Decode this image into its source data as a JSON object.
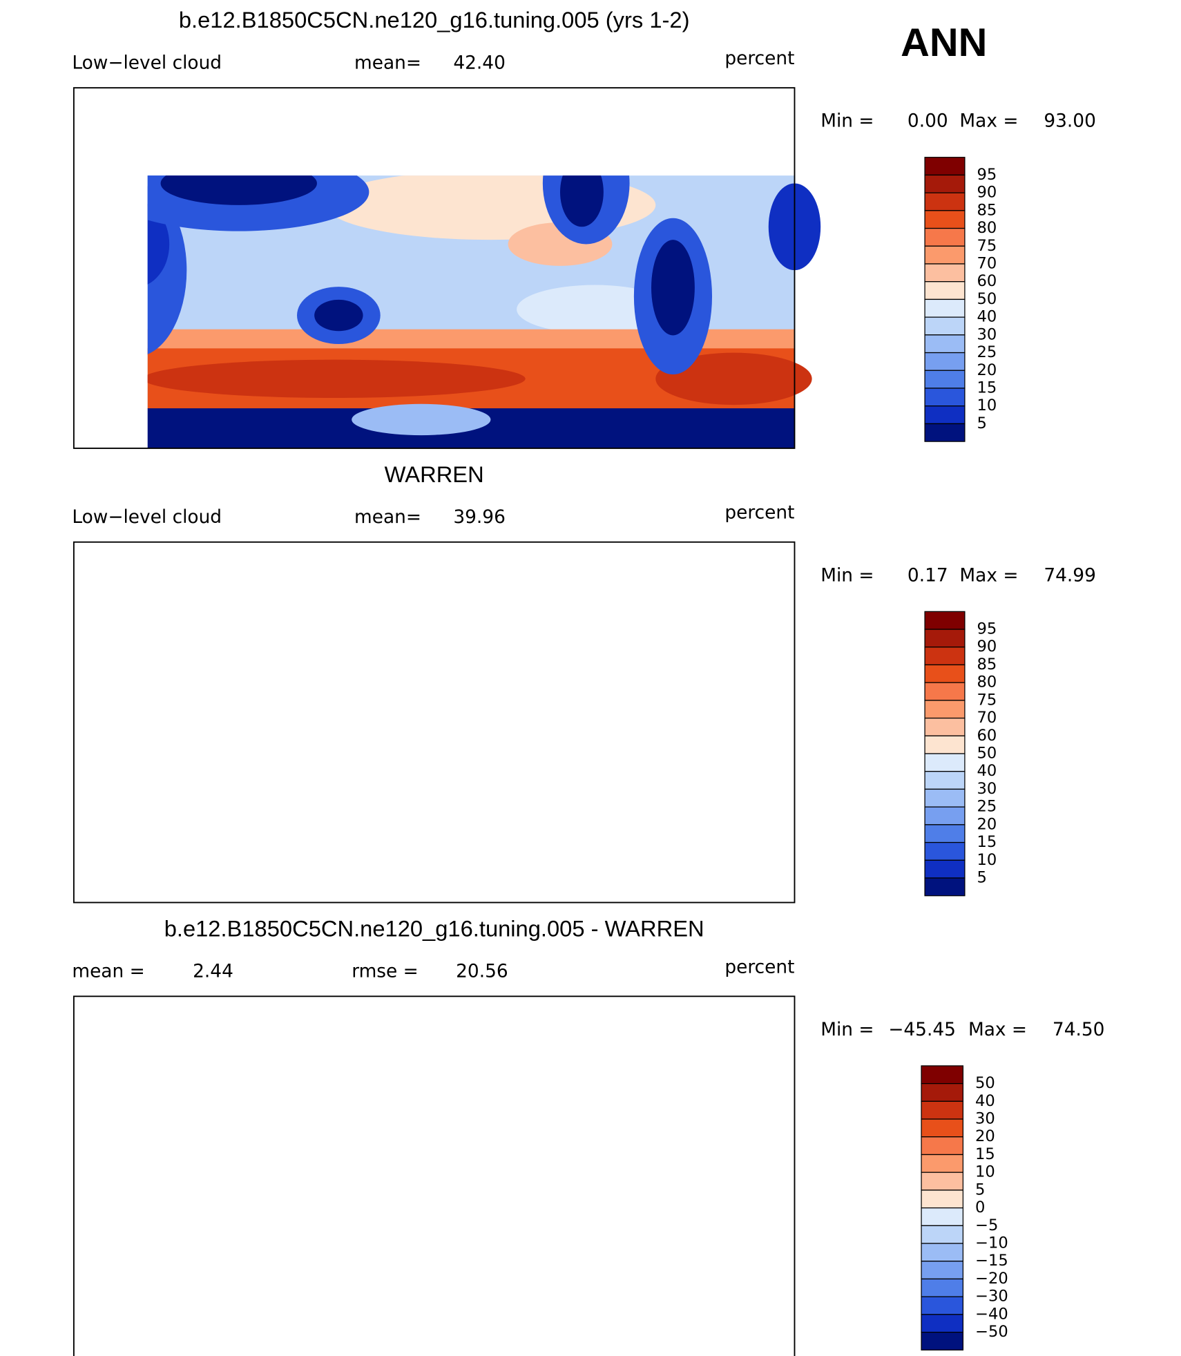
{
  "season": "ANN",
  "colorbar_colors": [
    "#7f0000",
    "#a51a0a",
    "#cc3311",
    "#e8501a",
    "#f6784a",
    "#fb9a6c",
    "#fcbfa0",
    "#fde4d0",
    "#dceafb",
    "#bcd5f8",
    "#9bbcf5",
    "#779ff0",
    "#4f7ee8",
    "#2a56dc",
    "#0f2fc2",
    "#00127e"
  ],
  "panels": [
    {
      "title": "b.e12.B1850C5CN.ne120_g16.tuning.005 (yrs 1-2)",
      "left_label": "Low−level cloud",
      "stats": [
        {
          "label": "mean=",
          "value": "42.40"
        }
      ],
      "units": "percent",
      "min_label": "Min =",
      "min_value": "0.00",
      "max_label": "Max =",
      "max_value": "93.00",
      "colorbar_labels": [
        "95",
        "90",
        "85",
        "80",
        "75",
        "70",
        "60",
        "50",
        "40",
        "30",
        "25",
        "20",
        "15",
        "10",
        "5"
      ]
    },
    {
      "title": "WARREN",
      "left_label": "Low−level cloud",
      "stats": [
        {
          "label": "mean=",
          "value": "39.96"
        }
      ],
      "units": "percent",
      "min_label": "Min =",
      "min_value": "0.17",
      "max_label": "Max =",
      "max_value": "74.99",
      "colorbar_labels": [
        "95",
        "90",
        "85",
        "80",
        "75",
        "70",
        "60",
        "50",
        "40",
        "30",
        "25",
        "20",
        "15",
        "10",
        "5"
      ]
    },
    {
      "title": "b.e12.B1850C5CN.ne120_g16.tuning.005 - WARREN",
      "stats": [
        {
          "label": "mean =",
          "value": "2.44"
        },
        {
          "label": "rmse =",
          "value": "20.56"
        }
      ],
      "units": "percent",
      "min_label": "Min =",
      "min_value": "−45.45",
      "max_label": "Max =",
      "max_value": "74.50",
      "colorbar_labels": [
        "50",
        "40",
        "30",
        "20",
        "15",
        "10",
        "5",
        "0",
        "−5",
        "−10",
        "−15",
        "−20",
        "−30",
        "−40",
        "−50"
      ]
    }
  ]
}
